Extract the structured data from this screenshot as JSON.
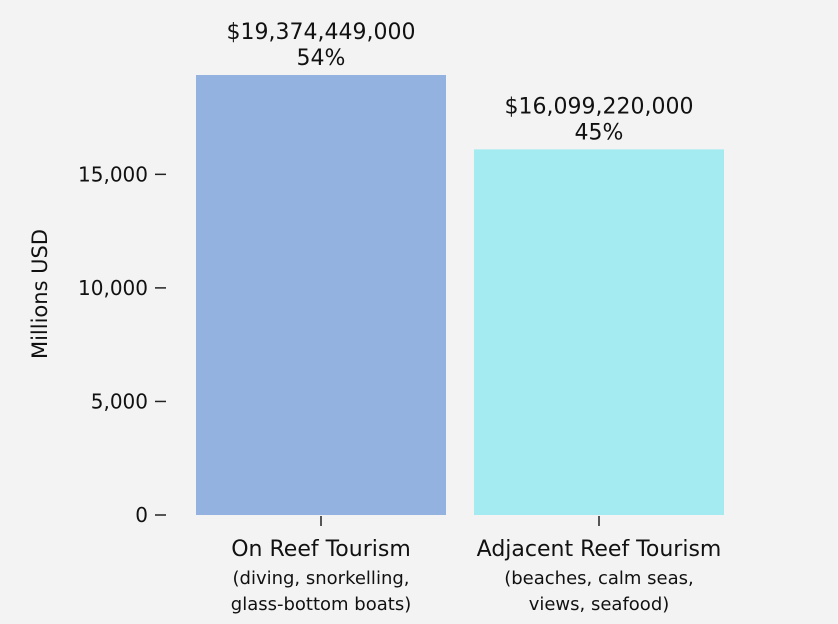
{
  "chart_data": {
    "type": "bar",
    "ylabel": "Millions USD",
    "ylim": [
      0,
      19374.449
    ],
    "yticks": [
      0,
      5000,
      10000,
      15000
    ],
    "ytick_labels": [
      "0",
      "5,000",
      "10,000",
      "15,000"
    ],
    "grid": false,
    "categories": [
      {
        "name": "On Reef Tourism",
        "subtitle_lines": [
          "(diving, snorkelling,",
          "glass-bottom boats)"
        ]
      },
      {
        "name": "Adjacent Reef Tourism",
        "subtitle_lines": [
          "(beaches, calm seas,",
          "views, seafood)"
        ]
      }
    ],
    "values": [
      19374.449,
      16099.22
    ],
    "value_labels": [
      "$19,374,449,000",
      "$16,099,220,000"
    ],
    "percent_labels": [
      "54%",
      "45%"
    ],
    "colors": [
      "#94b2df",
      "#a3ebf0"
    ]
  }
}
